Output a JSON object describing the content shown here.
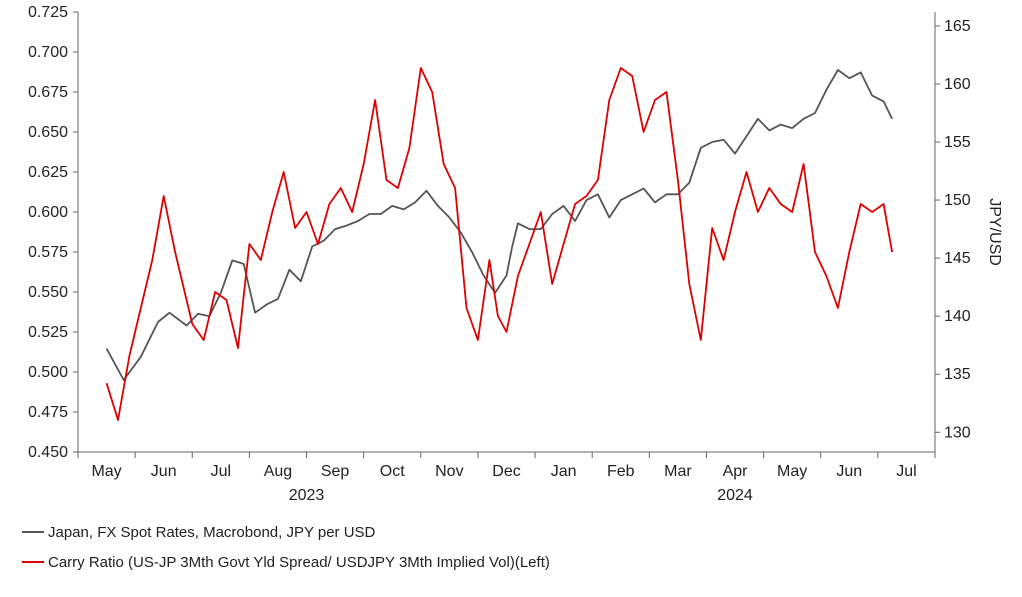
{
  "chart_data": {
    "type": "line",
    "title": "",
    "x_month_labels": [
      "May",
      "Jun",
      "Jul",
      "Aug",
      "Sep",
      "Oct",
      "Nov",
      "Dec",
      "Jan",
      "Feb",
      "Mar",
      "Apr",
      "May",
      "Jun",
      "Jul"
    ],
    "x_year_labels": [
      "2023",
      "2024"
    ],
    "left_axis": {
      "ylim": [
        0.45,
        0.725
      ],
      "ticks": [
        "0.450",
        "0.475",
        "0.500",
        "0.525",
        "0.550",
        "0.575",
        "0.600",
        "0.625",
        "0.650",
        "0.675",
        "0.700",
        "0.725"
      ]
    },
    "right_axis": {
      "label": "JPY/USD",
      "ylim": [
        128.3,
        166.2
      ],
      "ticks": [
        "130",
        "135",
        "140",
        "145",
        "150",
        "155",
        "160",
        "165"
      ]
    },
    "colors": {
      "fx": "#555555",
      "carry": "#dd0000",
      "axis": "#666666"
    },
    "series": [
      {
        "name": "Japan, FX Spot Rates, Macrobond, JPY per USD",
        "axis": "right",
        "x": [
          0.0,
          0.3,
          0.6,
          0.9,
          1.1,
          1.4,
          1.6,
          1.8,
          2.0,
          2.2,
          2.4,
          2.6,
          2.8,
          3.0,
          3.2,
          3.4,
          3.6,
          3.8,
          4.0,
          4.2,
          4.4,
          4.6,
          4.8,
          5.0,
          5.2,
          5.4,
          5.6,
          5.8,
          6.0,
          6.2,
          6.4,
          6.6,
          6.8,
          7.0,
          7.1,
          7.2,
          7.4,
          7.6,
          7.8,
          8.0,
          8.2,
          8.4,
          8.6,
          8.8,
          9.0,
          9.2,
          9.4,
          9.6,
          9.8,
          10.0,
          10.2,
          10.4,
          10.6,
          10.8,
          11.0,
          11.2,
          11.4,
          11.6,
          11.8,
          12.0,
          12.2,
          12.4,
          12.6,
          12.8,
          13.0,
          13.2,
          13.4,
          13.6,
          13.75
        ],
        "values": [
          137.2,
          134.5,
          136.5,
          139.5,
          140.3,
          139.2,
          140.2,
          140.0,
          142.0,
          144.8,
          144.5,
          140.3,
          141.0,
          141.5,
          144.0,
          143.0,
          146.0,
          146.5,
          147.5,
          147.8,
          148.2,
          148.8,
          148.8,
          149.5,
          149.2,
          149.8,
          150.8,
          149.5,
          148.5,
          147.2,
          145.5,
          143.5,
          142.0,
          143.5,
          146.0,
          148.0,
          147.5,
          147.5,
          148.8,
          149.5,
          148.2,
          150.0,
          150.5,
          148.5,
          150.0,
          150.5,
          151.0,
          149.8,
          150.5,
          150.5,
          151.5,
          154.5,
          155.0,
          155.2,
          154.0,
          155.5,
          157.0,
          156.0,
          156.5,
          156.2,
          157.0,
          157.5,
          159.5,
          161.2,
          160.5,
          161.0,
          159.0,
          158.5,
          157.0
        ]
      },
      {
        "name": "Carry Ratio (US-JP 3Mth Govt Yld Spread/ USDJPY 3Mth Implied Vol)(Left)",
        "axis": "left",
        "x": [
          0.0,
          0.2,
          0.4,
          0.6,
          0.8,
          1.0,
          1.2,
          1.5,
          1.7,
          1.9,
          2.1,
          2.3,
          2.5,
          2.7,
          2.9,
          3.1,
          3.3,
          3.5,
          3.7,
          3.9,
          4.1,
          4.3,
          4.5,
          4.7,
          4.9,
          5.1,
          5.3,
          5.5,
          5.7,
          5.9,
          6.1,
          6.3,
          6.5,
          6.7,
          6.85,
          7.0,
          7.2,
          7.4,
          7.6,
          7.8,
          8.0,
          8.2,
          8.4,
          8.6,
          8.8,
          9.0,
          9.2,
          9.4,
          9.6,
          9.8,
          10.0,
          10.2,
          10.4,
          10.6,
          10.8,
          11.0,
          11.2,
          11.4,
          11.6,
          11.8,
          12.0,
          12.2,
          12.4,
          12.6,
          12.8,
          13.0,
          13.2,
          13.4,
          13.6,
          13.75
        ],
        "values": [
          0.493,
          0.47,
          0.51,
          0.54,
          0.57,
          0.61,
          0.575,
          0.53,
          0.52,
          0.55,
          0.545,
          0.515,
          0.58,
          0.57,
          0.6,
          0.625,
          0.59,
          0.6,
          0.58,
          0.605,
          0.615,
          0.6,
          0.63,
          0.67,
          0.62,
          0.615,
          0.64,
          0.69,
          0.675,
          0.63,
          0.615,
          0.54,
          0.52,
          0.57,
          0.535,
          0.525,
          0.56,
          0.58,
          0.6,
          0.555,
          0.58,
          0.605,
          0.61,
          0.62,
          0.67,
          0.69,
          0.685,
          0.65,
          0.67,
          0.675,
          0.62,
          0.555,
          0.52,
          0.59,
          0.57,
          0.6,
          0.625,
          0.6,
          0.615,
          0.605,
          0.6,
          0.63,
          0.575,
          0.56,
          0.54,
          0.575,
          0.605,
          0.6,
          0.605,
          0.575
        ]
      }
    ]
  }
}
